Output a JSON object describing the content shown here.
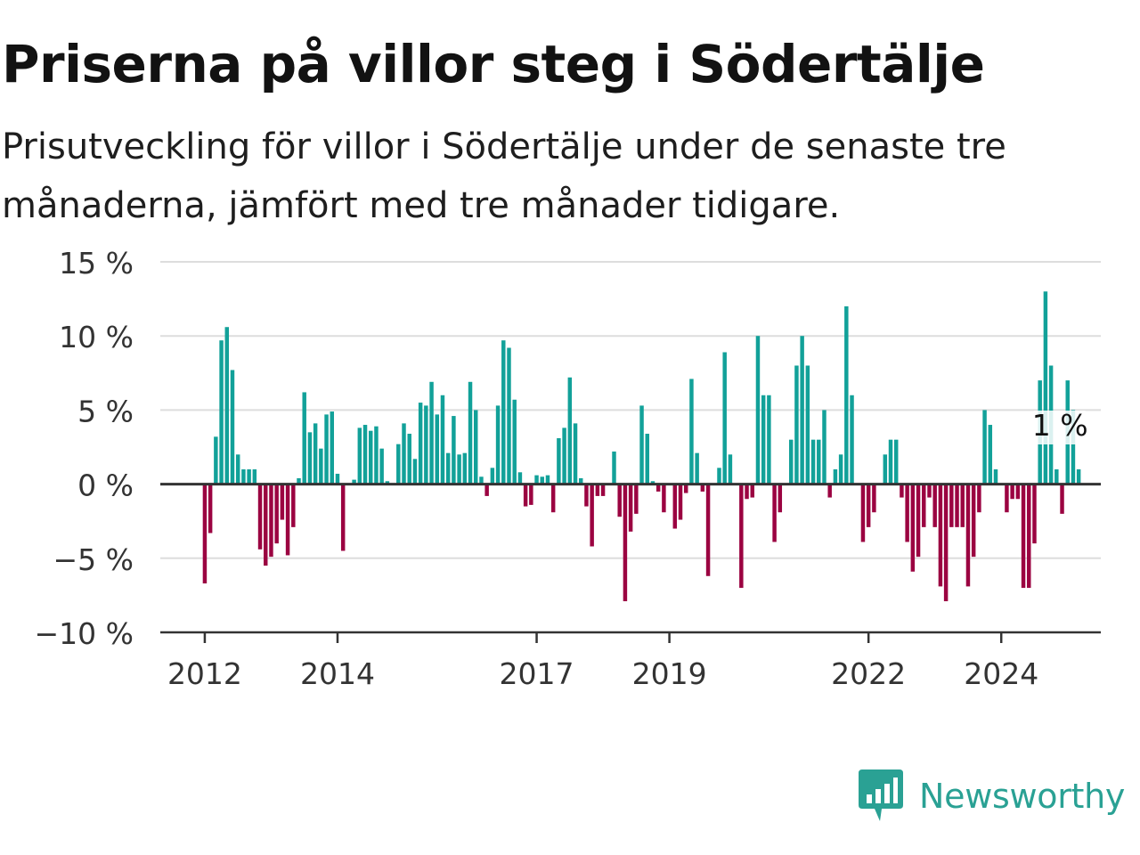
{
  "header": {
    "title": "Priserna på villor steg i Södertälje",
    "subtitle": "Prisutveckling för villor i Södertälje under de senaste tre månaderna, jämfört med tre månader tidigare."
  },
  "brand": {
    "name": "Newsworthy",
    "icon": "newsworthy-logo-icon"
  },
  "colors": {
    "positive": "#12a199",
    "negative": "#9b0341",
    "grid": "#dddddd",
    "axis": "#333333",
    "brand": "#2aa194"
  },
  "chart_data": {
    "type": "bar",
    "ylim": [
      -10,
      15
    ],
    "yticks": [
      15,
      10,
      5,
      0,
      -5,
      -10
    ],
    "ytick_labels": [
      "15 %",
      "10 %",
      "5 %",
      "0 %",
      "−5 %",
      "−10 %"
    ],
    "xticks": [
      {
        "label": "2012",
        "x": 2012.0
      },
      {
        "label": "2014",
        "x": 2014.0
      },
      {
        "label": "2017",
        "x": 2017.0
      },
      {
        "label": "2019",
        "x": 2019.0
      },
      {
        "label": "2022",
        "x": 2022.0
      },
      {
        "label": "2024",
        "x": 2024.0
      }
    ],
    "x_range": [
      2011.33,
      2025.5
    ],
    "grid": true,
    "annotation": {
      "text": "1 %",
      "x": 2024.92,
      "y": 1
    },
    "series": [
      {
        "start": "2012-01",
        "values": [
          -6.7,
          -3.3,
          3.2,
          9.7,
          10.6,
          7.7,
          2.0,
          1.0,
          1.0,
          1.0,
          -4.4,
          -5.5,
          -4.9,
          -4.0,
          -2.4,
          -4.8,
          -2.9,
          0.4,
          6.2,
          3.5,
          4.1,
          2.4,
          4.7,
          4.9,
          0.7,
          -4.5,
          0.0,
          0.3,
          3.8,
          4.0,
          3.6,
          3.9,
          2.4,
          0.2,
          0.0,
          2.7,
          4.1,
          3.4,
          1.7,
          5.5,
          5.3,
          6.9,
          4.7,
          6.0,
          2.1,
          4.6,
          2.0,
          2.1,
          6.9,
          5.0,
          0.5,
          -0.8,
          1.1,
          5.3,
          9.7,
          9.2,
          5.7,
          0.8,
          -1.5,
          -1.4,
          0.6,
          0.5,
          0.6,
          -1.9,
          3.1,
          3.8,
          7.2,
          4.1,
          0.4,
          -1.5,
          -4.2,
          -0.8,
          -0.8,
          0.0,
          2.2,
          -2.2,
          -7.9,
          -3.2,
          -2.0,
          5.3,
          3.4,
          0.2,
          -0.5,
          -1.9,
          0.0,
          -3.0,
          -2.4,
          -0.6,
          7.1,
          2.1,
          -0.5,
          -6.2,
          0.0,
          1.1,
          8.9,
          2.0,
          0.0,
          -7.0,
          -1.0,
          -0.9,
          10.0,
          6.0,
          6.0,
          -3.9,
          -1.9,
          0.0,
          3.0,
          8.0,
          10.0,
          8.0,
          3.0,
          3.0,
          5.0,
          -0.9,
          1.0,
          2.0,
          12.0,
          6.0,
          0.0,
          -3.9,
          -2.9,
          -1.9,
          0.0,
          2.0,
          3.0,
          3.0,
          -0.9,
          -3.9,
          -5.9,
          -4.9,
          -2.9,
          -0.9,
          -2.9,
          -6.9,
          -7.9,
          -2.9,
          -2.9,
          -2.9,
          -6.9,
          -4.9,
          -1.9,
          5.0,
          4.0,
          1.0,
          0.0,
          -1.9,
          -1.0,
          -1.0,
          -7.0,
          -7.0,
          -4.0,
          7.0,
          13.0,
          8.0,
          1.0,
          -2.0,
          7.0,
          5.0,
          1.0
        ]
      }
    ]
  }
}
